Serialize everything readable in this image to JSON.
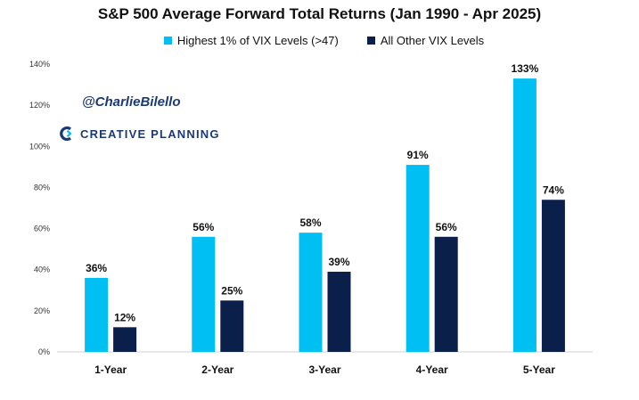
{
  "watermark": {
    "handle": "@CharlieBilello",
    "brand": "CREATIVE PLANNING"
  },
  "colors": {
    "series_1": "#00bff3",
    "series_2": "#0b1f4b",
    "brand": "#1b3a73"
  },
  "chart_data": {
    "type": "bar",
    "title": "S&P 500 Average Forward Total Returns (Jan 1990 - Apr 2025)",
    "xlabel": "",
    "ylabel": "",
    "categories": [
      "1-Year",
      "2-Year",
      "3-Year",
      "4-Year",
      "5-Year"
    ],
    "series": [
      {
        "name": "Highest 1% of VIX Levels (>47)",
        "values": [
          36,
          56,
          58,
          91,
          133
        ],
        "labels": [
          "36%",
          "56%",
          "58%",
          "91%",
          "133%"
        ]
      },
      {
        "name": "All Other VIX Levels",
        "values": [
          12,
          25,
          39,
          56,
          74
        ],
        "labels": [
          "12%",
          "25%",
          "39%",
          "56%",
          "74%"
        ]
      }
    ],
    "ylim": [
      0,
      140
    ],
    "yticks": [
      "0%",
      "20%",
      "40%",
      "60%",
      "80%",
      "100%",
      "120%",
      "140%"
    ],
    "grid": false,
    "legend_position": "top-center"
  }
}
